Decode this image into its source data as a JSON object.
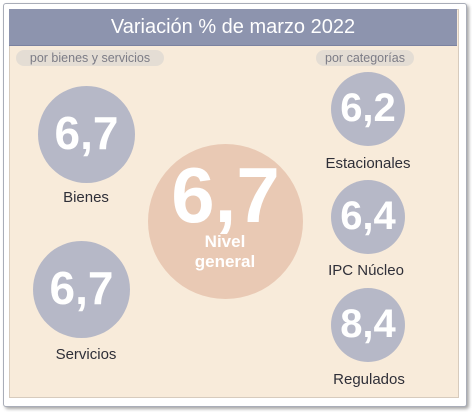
{
  "title": "Variación % de marzo 2022",
  "left_tag": "por bienes y servicios",
  "right_tag": "por categorías",
  "chart_data": {
    "type": "bubble",
    "title": "Variación % de marzo 2022",
    "groups": [
      {
        "name": "por bienes y servicios",
        "items": [
          {
            "label": "Bienes",
            "value": 6.7,
            "display": "6,7"
          },
          {
            "label": "Servicios",
            "value": 6.7,
            "display": "6,7"
          }
        ]
      },
      {
        "name": "general",
        "items": [
          {
            "label": "Nivel general",
            "value": 6.7,
            "display": "6,7"
          }
        ]
      },
      {
        "name": "por categorías",
        "items": [
          {
            "label": "Estacionales",
            "value": 6.2,
            "display": "6,2"
          },
          {
            "label": "IPC Núcleo",
            "value": 6.4,
            "display": "6,4"
          },
          {
            "label": "Regulados",
            "value": 8.4,
            "display": "8,4"
          }
        ]
      }
    ]
  },
  "center_label_lines": [
    "Nivel",
    "general"
  ],
  "colors": {
    "header": "#8d94ae",
    "panel": "#f8ebda",
    "bubble": "#b6b8c7",
    "center_bubble": "#e9c9b4"
  }
}
